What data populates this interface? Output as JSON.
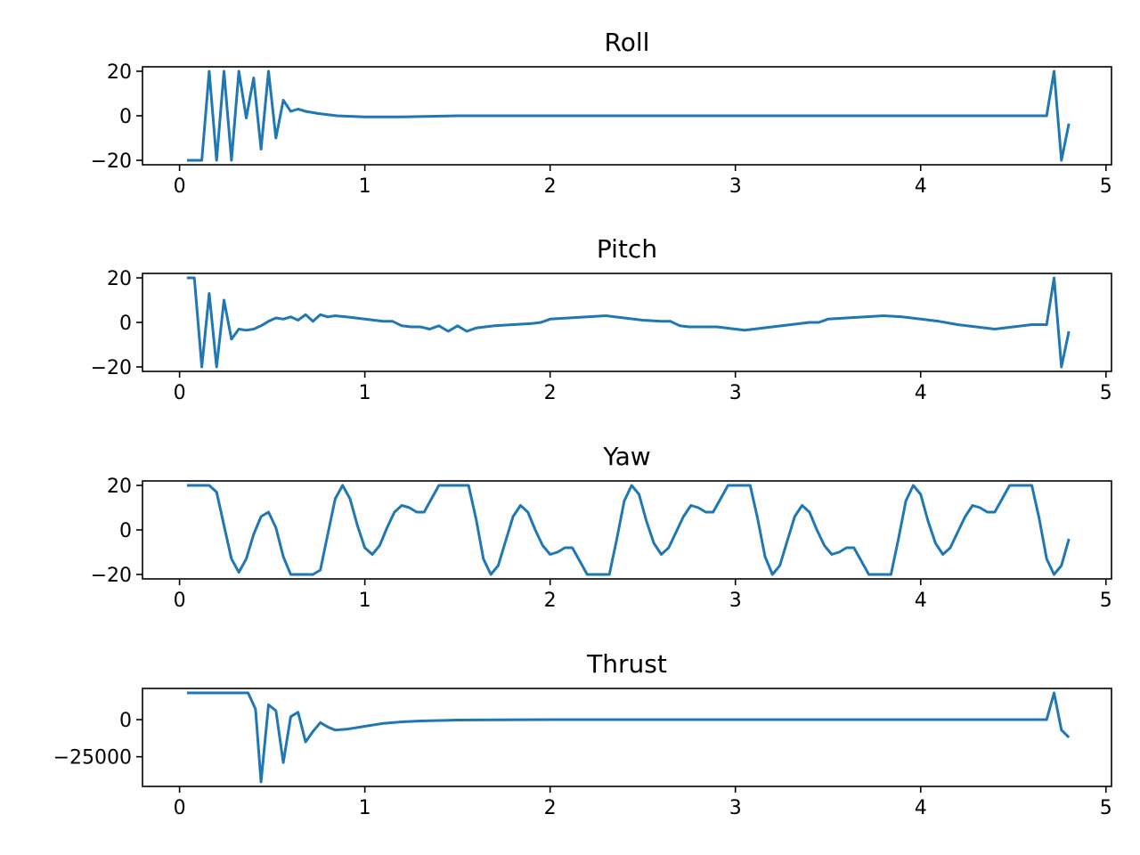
{
  "colors": {
    "line": "#1f77b4",
    "axes": "#000000",
    "background": "#ffffff"
  },
  "chart_data": [
    {
      "type": "line",
      "title": "Roll",
      "xlabel": "",
      "ylabel": "",
      "xlim": [
        -0.2,
        5.03
      ],
      "ylim": [
        -22,
        22
      ],
      "xticks": [
        0,
        1,
        2,
        3,
        4,
        5
      ],
      "yticks": [
        {
          "value": -20,
          "label": "−20"
        },
        {
          "value": 0,
          "label": "0"
        },
        {
          "value": 20,
          "label": "20"
        }
      ],
      "grid": false,
      "series": [
        {
          "x": [
            0.04,
            0.08,
            0.12,
            0.16,
            0.2,
            0.24,
            0.28,
            0.32,
            0.36,
            0.4,
            0.44,
            0.48,
            0.52,
            0.56,
            0.6,
            0.64,
            0.68,
            0.75,
            0.85,
            1.0,
            1.2,
            1.5,
            1.8,
            2.2,
            2.6,
            3.0,
            3.4,
            3.8,
            4.2,
            4.6,
            4.68,
            4.72,
            4.76,
            4.8
          ],
          "y": [
            -20,
            -20,
            -20,
            20,
            -20,
            20,
            -20,
            20,
            -1,
            17,
            -15,
            20,
            -10,
            7,
            2,
            3,
            2,
            1,
            0,
            -0.5,
            -0.5,
            0,
            0,
            0,
            0,
            0,
            0,
            0,
            0,
            0,
            0,
            20,
            -20,
            -3.5
          ]
        }
      ]
    },
    {
      "type": "line",
      "title": "Pitch",
      "xlabel": "",
      "ylabel": "",
      "xlim": [
        -0.2,
        5.03
      ],
      "ylim": [
        -22,
        22
      ],
      "xticks": [
        0,
        1,
        2,
        3,
        4,
        5
      ],
      "yticks": [
        {
          "value": -20,
          "label": "−20"
        },
        {
          "value": 0,
          "label": "0"
        },
        {
          "value": 20,
          "label": "20"
        }
      ],
      "grid": false,
      "series": [
        {
          "x": [
            0.04,
            0.08,
            0.12,
            0.16,
            0.2,
            0.24,
            0.28,
            0.32,
            0.36,
            0.4,
            0.44,
            0.48,
            0.52,
            0.56,
            0.6,
            0.64,
            0.68,
            0.72,
            0.76,
            0.8,
            0.84,
            0.9,
            1.0,
            1.1,
            1.15,
            1.2,
            1.25,
            1.3,
            1.35,
            1.4,
            1.45,
            1.5,
            1.55,
            1.6,
            1.65,
            1.7,
            1.8,
            1.9,
            1.95,
            2.0,
            2.1,
            2.2,
            2.3,
            2.4,
            2.5,
            2.6,
            2.65,
            2.7,
            2.75,
            2.8,
            2.9,
            3.0,
            3.05,
            3.1,
            3.2,
            3.3,
            3.4,
            3.45,
            3.5,
            3.6,
            3.7,
            3.8,
            3.9,
            4.0,
            4.1,
            4.2,
            4.3,
            4.4,
            4.5,
            4.6,
            4.68,
            4.72,
            4.76,
            4.8
          ],
          "y": [
            20,
            20,
            -20,
            13,
            -20,
            10,
            -7.5,
            -3,
            -3.5,
            -3,
            -1.5,
            0.5,
            2,
            1.5,
            2.5,
            1,
            3.5,
            0.5,
            3.5,
            2.5,
            3,
            2.5,
            1.5,
            0.5,
            0.5,
            -1.5,
            -2,
            -2,
            -3,
            -1.5,
            -4,
            -1.5,
            -4,
            -2.5,
            -2,
            -1.5,
            -1,
            -0.5,
            0,
            1.5,
            2,
            2.5,
            3,
            2,
            1,
            0.5,
            0.5,
            -1.5,
            -2,
            -2,
            -2,
            -3,
            -3.5,
            -3,
            -2,
            -1,
            0,
            0,
            1.5,
            2,
            2.5,
            3,
            2.5,
            1.5,
            0.5,
            -1,
            -2,
            -3,
            -2,
            -1,
            -1,
            20,
            -20,
            -4
          ]
        }
      ]
    },
    {
      "type": "line",
      "title": "Yaw",
      "xlabel": "",
      "ylabel": "",
      "xlim": [
        -0.2,
        5.03
      ],
      "ylim": [
        -22,
        22
      ],
      "xticks": [
        0,
        1,
        2,
        3,
        4,
        5
      ],
      "yticks": [
        {
          "value": -20,
          "label": "−20"
        },
        {
          "value": 0,
          "label": "0"
        },
        {
          "value": 20,
          "label": "20"
        }
      ],
      "grid": false,
      "series": [
        {
          "x": [
            0.04,
            0.16,
            0.2,
            0.24,
            0.28,
            0.32,
            0.36,
            0.4,
            0.44,
            0.48,
            0.52,
            0.56,
            0.6,
            0.72,
            0.76,
            0.8,
            0.84,
            0.88,
            0.92,
            0.96,
            1.0,
            1.04,
            1.08,
            1.12,
            1.16,
            1.2,
            1.24,
            1.28,
            1.32,
            1.36,
            1.4,
            1.44,
            1.56,
            1.6,
            1.64,
            1.68,
            1.72,
            1.76,
            1.8,
            1.84,
            1.88,
            1.92,
            1.96,
            2.0,
            2.04,
            2.08,
            2.12,
            2.16,
            2.2,
            2.32,
            2.36,
            2.4,
            2.44,
            2.48,
            2.52,
            2.56,
            2.6,
            2.64,
            2.68,
            2.72,
            2.76,
            2.8,
            2.84,
            2.88,
            2.92,
            2.96,
            3.08,
            3.12,
            3.16,
            3.2,
            3.24,
            3.28,
            3.32,
            3.36,
            3.4,
            3.44,
            3.48,
            3.52,
            3.56,
            3.6,
            3.64,
            3.68,
            3.72,
            3.84,
            3.88,
            3.92,
            3.96,
            4.0,
            4.04,
            4.08,
            4.12,
            4.16,
            4.2,
            4.24,
            4.28,
            4.32,
            4.36,
            4.4,
            4.44,
            4.48,
            4.6,
            4.64,
            4.68,
            4.72,
            4.76,
            4.8
          ],
          "y": [
            20,
            20,
            17,
            2,
            -13,
            -19,
            -13,
            -2,
            6,
            8,
            1,
            -12,
            -20,
            -20,
            -18,
            -2,
            14,
            20,
            14,
            2,
            -8,
            -11,
            -7,
            1,
            8,
            11,
            10,
            8,
            8,
            14,
            20,
            20,
            20,
            5,
            -13,
            -20,
            -16,
            -5,
            6,
            11,
            8,
            0,
            -7,
            -11,
            -10,
            -8,
            -8,
            -14,
            -20,
            -20,
            -4,
            13,
            20,
            16,
            4,
            -6,
            -11,
            -8,
            -1,
            6,
            11,
            10,
            8,
            8,
            14,
            20,
            20,
            5,
            -12,
            -20,
            -16,
            -5,
            6,
            11,
            8,
            0,
            -7,
            -11,
            -10,
            -8,
            -8,
            -14,
            -20,
            -20,
            -4,
            13,
            20,
            16,
            4,
            -6,
            -11,
            -8,
            -1,
            6,
            11,
            10,
            8,
            8,
            14,
            20,
            20,
            5,
            -13,
            -20,
            -16,
            -4
          ]
        }
      ]
    },
    {
      "type": "line",
      "title": "Thrust",
      "xlabel": "",
      "ylabel": "",
      "xlim": [
        -0.2,
        5.03
      ],
      "ylim": [
        -45000,
        21000
      ],
      "xticks": [
        0,
        1,
        2,
        3,
        4,
        5
      ],
      "yticks": [
        {
          "value": -25000,
          "label": "−25000"
        },
        {
          "value": 0,
          "label": "0"
        }
      ],
      "grid": false,
      "series": [
        {
          "x": [
            0.04,
            0.37,
            0.41,
            0.44,
            0.48,
            0.52,
            0.56,
            0.6,
            0.64,
            0.68,
            0.72,
            0.76,
            0.8,
            0.84,
            0.9,
            0.95,
            1.0,
            1.1,
            1.2,
            1.3,
            1.5,
            1.7,
            2.0,
            2.5,
            3.0,
            4.0,
            4.68,
            4.72,
            4.76,
            4.8
          ],
          "y": [
            18000,
            18000,
            7000,
            -42000,
            10000,
            6000,
            -29000,
            2000,
            5000,
            -15000,
            -8000,
            -2000,
            -5000,
            -7000,
            -6500,
            -5500,
            -4500,
            -2500,
            -1500,
            -900,
            -300,
            -100,
            0,
            0,
            0,
            0,
            0,
            18000,
            -7000,
            -12000
          ]
        }
      ]
    }
  ]
}
